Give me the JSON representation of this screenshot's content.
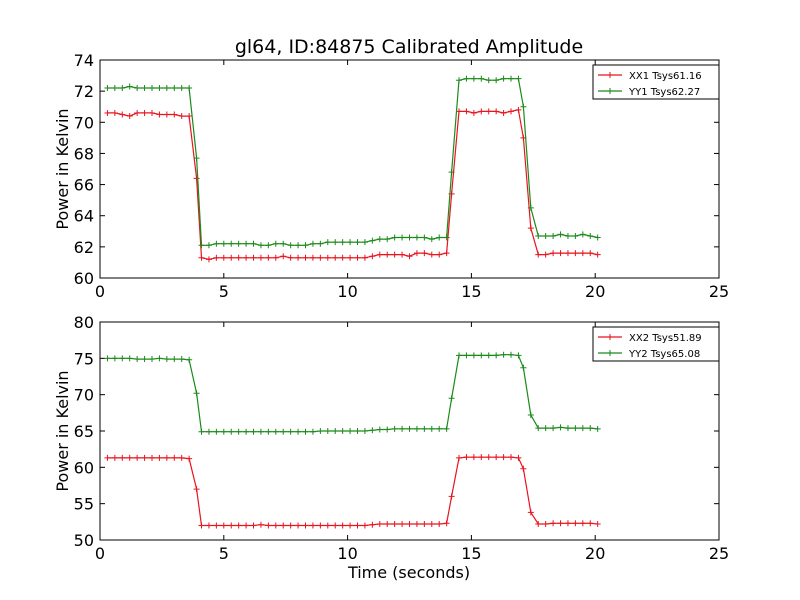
{
  "figure": {
    "title": "gl64, ID:84875 Calibrated Amplitude",
    "xlabel": "Time (seconds)"
  },
  "chart_data": [
    {
      "type": "line",
      "title": "gl64, ID:84875 Calibrated Amplitude",
      "xlabel": "",
      "ylabel": "Power in Kelvin",
      "xlim": [
        0,
        25
      ],
      "ylim": [
        60,
        74
      ],
      "xticks": [
        0,
        5,
        10,
        15,
        20,
        25
      ],
      "yticks": [
        60,
        62,
        64,
        66,
        68,
        70,
        72,
        74
      ],
      "grid": false,
      "legend_position": "top-right",
      "colors": {
        "XX1 Tsys61.16": "#e8141e",
        "YY1 Tsys62.27": "#1a8a1a"
      },
      "x": [
        0.3,
        0.6,
        0.9,
        1.2,
        1.5,
        1.8,
        2.1,
        2.4,
        2.7,
        3.0,
        3.3,
        3.6,
        3.9,
        4.1,
        4.4,
        4.7,
        5.0,
        5.3,
        5.6,
        5.9,
        6.2,
        6.5,
        6.8,
        7.1,
        7.4,
        7.7,
        8.0,
        8.3,
        8.6,
        8.9,
        9.2,
        9.5,
        9.8,
        10.1,
        10.4,
        10.7,
        11.0,
        11.3,
        11.6,
        11.9,
        12.2,
        12.5,
        12.8,
        13.1,
        13.4,
        13.7,
        14.0,
        14.2,
        14.5,
        14.8,
        15.1,
        15.4,
        15.7,
        16.0,
        16.3,
        16.6,
        16.9,
        17.1,
        17.4,
        17.7,
        18.0,
        18.3,
        18.6,
        18.9,
        19.2,
        19.5,
        19.8,
        20.1
      ],
      "series": [
        {
          "name": "XX1 Tsys61.16",
          "values": [
            70.6,
            70.6,
            70.5,
            70.4,
            70.6,
            70.6,
            70.6,
            70.5,
            70.5,
            70.5,
            70.4,
            70.4,
            66.4,
            61.3,
            61.2,
            61.3,
            61.3,
            61.3,
            61.3,
            61.3,
            61.3,
            61.3,
            61.3,
            61.3,
            61.4,
            61.3,
            61.3,
            61.3,
            61.3,
            61.3,
            61.3,
            61.3,
            61.3,
            61.3,
            61.3,
            61.3,
            61.4,
            61.5,
            61.5,
            61.5,
            61.5,
            61.4,
            61.6,
            61.6,
            61.5,
            61.5,
            61.6,
            65.4,
            70.7,
            70.7,
            70.6,
            70.7,
            70.7,
            70.7,
            70.6,
            70.7,
            70.8,
            69.0,
            63.2,
            61.5,
            61.5,
            61.6,
            61.6,
            61.6,
            61.6,
            61.6,
            61.6,
            61.5
          ]
        },
        {
          "name": "YY1 Tsys62.27",
          "values": [
            72.2,
            72.2,
            72.2,
            72.3,
            72.2,
            72.2,
            72.2,
            72.2,
            72.2,
            72.2,
            72.2,
            72.2,
            67.7,
            62.1,
            62.1,
            62.2,
            62.2,
            62.2,
            62.2,
            62.2,
            62.2,
            62.1,
            62.1,
            62.2,
            62.2,
            62.1,
            62.1,
            62.1,
            62.2,
            62.2,
            62.3,
            62.3,
            62.3,
            62.3,
            62.3,
            62.3,
            62.4,
            62.5,
            62.5,
            62.6,
            62.6,
            62.6,
            62.6,
            62.6,
            62.5,
            62.6,
            62.6,
            66.8,
            72.7,
            72.8,
            72.8,
            72.8,
            72.7,
            72.7,
            72.8,
            72.8,
            72.8,
            71.0,
            64.5,
            62.7,
            62.7,
            62.7,
            62.8,
            62.7,
            62.7,
            62.8,
            62.7,
            62.6
          ]
        }
      ]
    },
    {
      "type": "line",
      "title": "",
      "xlabel": "Time (seconds)",
      "ylabel": "Power in Kelvin",
      "xlim": [
        0,
        25
      ],
      "ylim": [
        50,
        80
      ],
      "xticks": [
        0,
        5,
        10,
        15,
        20,
        25
      ],
      "yticks": [
        50,
        55,
        60,
        65,
        70,
        75,
        80
      ],
      "grid": false,
      "legend_position": "top-right",
      "colors": {
        "XX2 Tsys51.89": "#e8141e",
        "YY2 Tsys65.08": "#1a8a1a"
      },
      "x": [
        0.3,
        0.6,
        0.9,
        1.2,
        1.5,
        1.8,
        2.1,
        2.4,
        2.7,
        3.0,
        3.3,
        3.6,
        3.9,
        4.1,
        4.4,
        4.7,
        5.0,
        5.3,
        5.6,
        5.9,
        6.2,
        6.5,
        6.8,
        7.1,
        7.4,
        7.7,
        8.0,
        8.3,
        8.6,
        8.9,
        9.2,
        9.5,
        9.8,
        10.1,
        10.4,
        10.7,
        11.0,
        11.3,
        11.6,
        11.9,
        12.2,
        12.5,
        12.8,
        13.1,
        13.4,
        13.7,
        14.0,
        14.2,
        14.5,
        14.8,
        15.1,
        15.4,
        15.7,
        16.0,
        16.3,
        16.6,
        16.9,
        17.1,
        17.4,
        17.7,
        18.0,
        18.3,
        18.6,
        18.9,
        19.2,
        19.5,
        19.8,
        20.1
      ],
      "series": [
        {
          "name": "XX2 Tsys51.89",
          "values": [
            61.3,
            61.3,
            61.3,
            61.3,
            61.3,
            61.3,
            61.3,
            61.3,
            61.3,
            61.3,
            61.3,
            61.2,
            57.0,
            52.0,
            52.0,
            52.0,
            52.0,
            52.0,
            52.0,
            52.0,
            52.0,
            52.1,
            52.0,
            52.0,
            52.0,
            52.0,
            52.0,
            52.0,
            52.0,
            52.0,
            52.0,
            52.0,
            52.0,
            52.0,
            52.0,
            52.0,
            52.1,
            52.2,
            52.2,
            52.2,
            52.2,
            52.2,
            52.2,
            52.2,
            52.2,
            52.2,
            52.3,
            56.0,
            61.3,
            61.4,
            61.4,
            61.4,
            61.4,
            61.4,
            61.4,
            61.4,
            61.3,
            59.8,
            53.8,
            52.2,
            52.2,
            52.3,
            52.3,
            52.3,
            52.3,
            52.3,
            52.3,
            52.2
          ]
        },
        {
          "name": "YY2 Tsys65.08",
          "values": [
            75.0,
            75.0,
            75.0,
            75.0,
            74.9,
            74.9,
            74.9,
            75.0,
            74.9,
            74.9,
            74.9,
            74.8,
            70.2,
            64.9,
            64.9,
            64.9,
            64.9,
            64.9,
            64.9,
            64.9,
            64.9,
            64.9,
            64.9,
            64.9,
            64.9,
            64.9,
            64.9,
            64.9,
            64.9,
            65.0,
            65.0,
            65.0,
            65.0,
            65.0,
            65.0,
            65.0,
            65.1,
            65.2,
            65.2,
            65.3,
            65.3,
            65.3,
            65.3,
            65.3,
            65.3,
            65.3,
            65.3,
            69.5,
            75.4,
            75.4,
            75.4,
            75.4,
            75.4,
            75.4,
            75.5,
            75.5,
            75.4,
            73.7,
            67.2,
            65.4,
            65.4,
            65.4,
            65.5,
            65.4,
            65.4,
            65.4,
            65.4,
            65.3
          ]
        }
      ]
    }
  ]
}
